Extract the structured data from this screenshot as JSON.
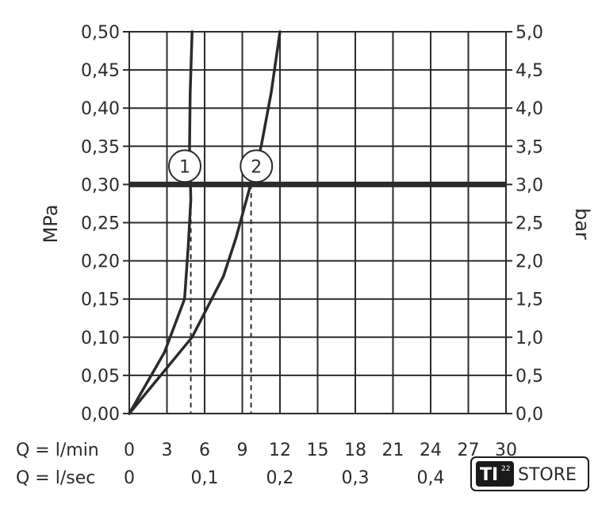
{
  "chart_data": {
    "type": "line",
    "ylabel_left": "MPa",
    "ylabel_right": "bar",
    "y_left_ticks": [
      "0,00",
      "0,05",
      "0,10",
      "0,15",
      "0,20",
      "0,25",
      "0,30",
      "0,35",
      "0,40",
      "0,45",
      "0,50"
    ],
    "y_right_ticks": [
      "0,0",
      "0,5",
      "1,0",
      "1,5",
      "2,0",
      "2,5",
      "3,0",
      "3,5",
      "4,0",
      "4,5",
      "5,0"
    ],
    "ylim": [
      0,
      0.5
    ],
    "xlim": [
      0,
      30
    ],
    "x_grid_step": 3,
    "x_row1_label": "Q = l/min",
    "x_row1_ticks": [
      "0",
      "3",
      "6",
      "9",
      "12",
      "15",
      "18",
      "21",
      "24",
      "27",
      "30"
    ],
    "x_row2_label": "Q = l/sec",
    "x_row2_ticks": [
      "0",
      "0,1",
      "0,2",
      "0,3",
      "0,4"
    ],
    "x_row2_values": [
      0,
      6,
      12,
      18,
      24
    ],
    "reference_line": {
      "y": 0.3
    },
    "series": [
      {
        "name": "1",
        "x": [
          0,
          2.8,
          4.4,
          4.7,
          4.9,
          4.8,
          4.85,
          5.0
        ],
        "y": [
          0,
          0.08,
          0.15,
          0.22,
          0.28,
          0.35,
          0.42,
          0.5
        ],
        "dashed_drop_x": 4.9
      },
      {
        "name": "2",
        "x": [
          0,
          5,
          7.5,
          8.5,
          9.5,
          10.5,
          11.3,
          12.0
        ],
        "y": [
          0,
          0.1,
          0.18,
          0.23,
          0.29,
          0.35,
          0.42,
          0.5
        ],
        "dashed_drop_x": 9.7
      }
    ]
  },
  "watermark": {
    "logo_text": "TI",
    "logo_sup": "22",
    "store_text": "STORE"
  }
}
